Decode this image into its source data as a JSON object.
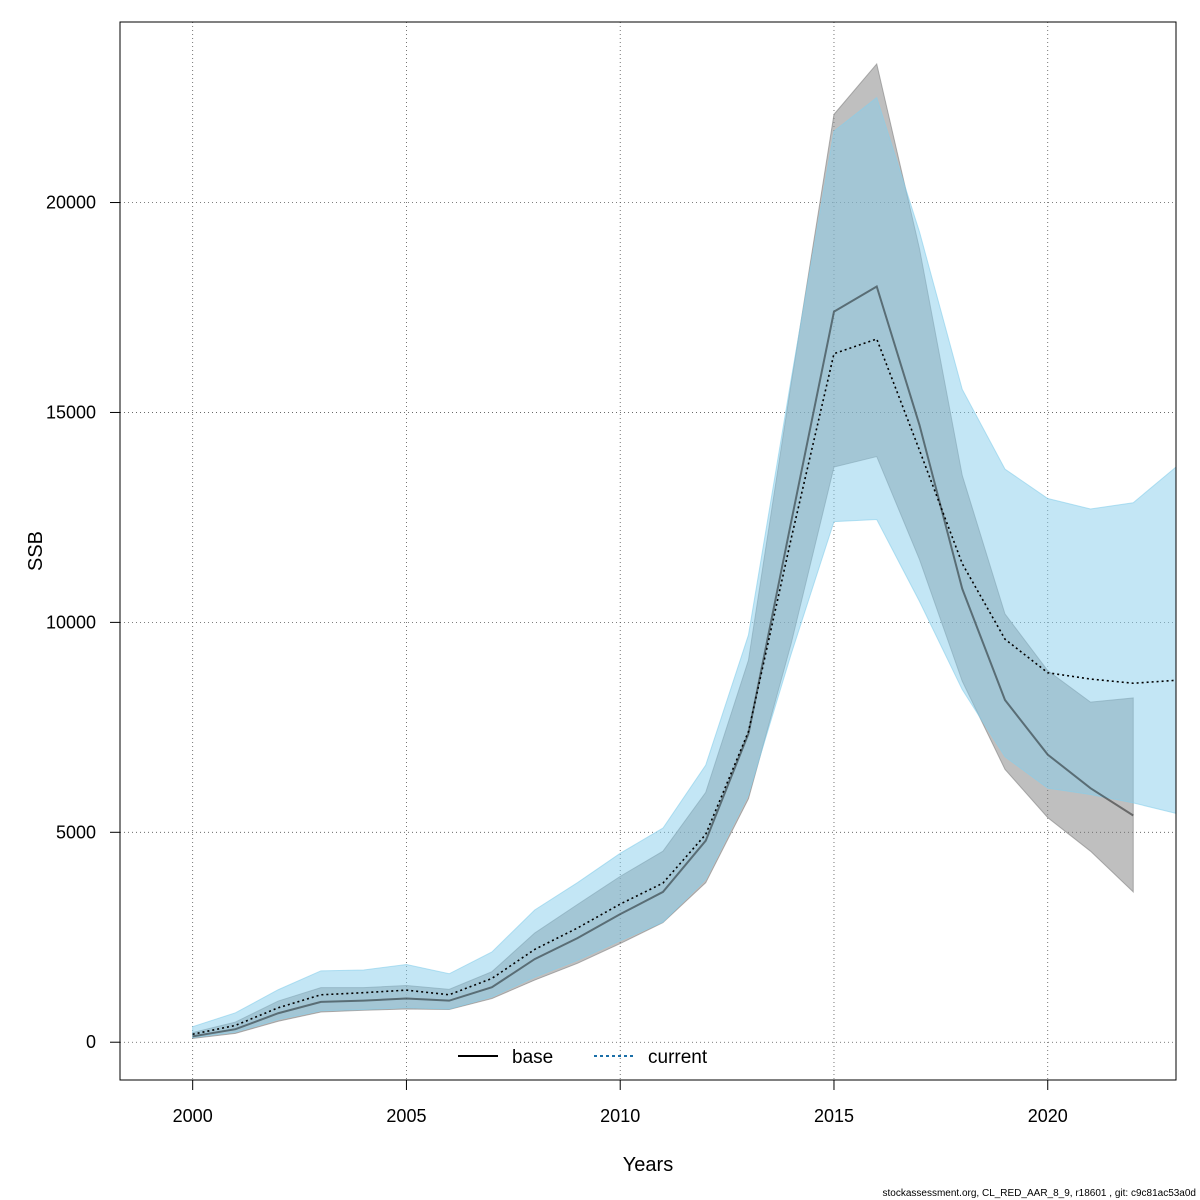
{
  "chart_data": {
    "type": "line",
    "xlabel": "Years",
    "ylabel": "SSB",
    "xlim": [
      1998.3,
      2023.0
    ],
    "ylim": [
      -900,
      24300
    ],
    "xticks": [
      2000,
      2005,
      2010,
      2015,
      2020
    ],
    "yticks": [
      0,
      5000,
      10000,
      15000,
      20000
    ],
    "grid": true,
    "legend_position": "bottom-center",
    "series": [
      {
        "name": "base",
        "line_style": "solid",
        "line_color": "#000000",
        "band_color": "#808080",
        "x": [
          2000,
          2001,
          2002,
          2003,
          2004,
          2005,
          2006,
          2007,
          2008,
          2009,
          2010,
          2011,
          2012,
          2013,
          2014,
          2015,
          2016,
          2017,
          2018,
          2019,
          2020,
          2021,
          2022
        ],
        "y": [
          140,
          310,
          690,
          960,
          990,
          1040,
          990,
          1310,
          1980,
          2480,
          3050,
          3580,
          4800,
          7350,
          12400,
          17400,
          18000,
          14700,
          10800,
          8150,
          6850,
          6050,
          5400
        ],
        "lower": [
          90,
          210,
          500,
          720,
          760,
          790,
          780,
          1040,
          1480,
          1880,
          2350,
          2850,
          3800,
          5800,
          9500,
          13700,
          13950,
          11500,
          8600,
          6500,
          5350,
          4550,
          3580
        ],
        "upper": [
          230,
          480,
          980,
          1300,
          1300,
          1350,
          1260,
          1680,
          2600,
          3280,
          3950,
          4550,
          5950,
          9100,
          15700,
          22100,
          23300,
          18900,
          13500,
          10200,
          8850,
          8100,
          8200
        ]
      },
      {
        "name": "current",
        "line_style": "dotted",
        "line_color": "#000000",
        "band_color": "#87ceeb",
        "x": [
          2000,
          2001,
          2002,
          2003,
          2004,
          2005,
          2006,
          2007,
          2008,
          2009,
          2010,
          2011,
          2012,
          2013,
          2014,
          2015,
          2016,
          2017,
          2018,
          2019,
          2020,
          2021,
          2022,
          2023
        ],
        "y": [
          190,
          400,
          820,
          1130,
          1180,
          1240,
          1130,
          1520,
          2210,
          2720,
          3290,
          3790,
          4950,
          7400,
          12000,
          16400,
          16750,
          14100,
          11400,
          9600,
          8800,
          8650,
          8550,
          8620
        ],
        "lower": [
          110,
          240,
          540,
          750,
          780,
          820,
          790,
          1080,
          1550,
          1950,
          2420,
          2860,
          3880,
          5900,
          9250,
          12400,
          12450,
          10500,
          8400,
          6800,
          6050,
          5900,
          5700,
          5450
        ],
        "upper": [
          370,
          700,
          1250,
          1700,
          1720,
          1850,
          1630,
          2150,
          3150,
          3800,
          4500,
          5100,
          6600,
          9700,
          15800,
          21700,
          22500,
          19300,
          15550,
          13650,
          12950,
          12700,
          12850,
          13700
        ]
      }
    ]
  },
  "footer": "stockassessment.org, CL_RED_AAR_8_9, r18601 , git: c9c81ac53a0d"
}
